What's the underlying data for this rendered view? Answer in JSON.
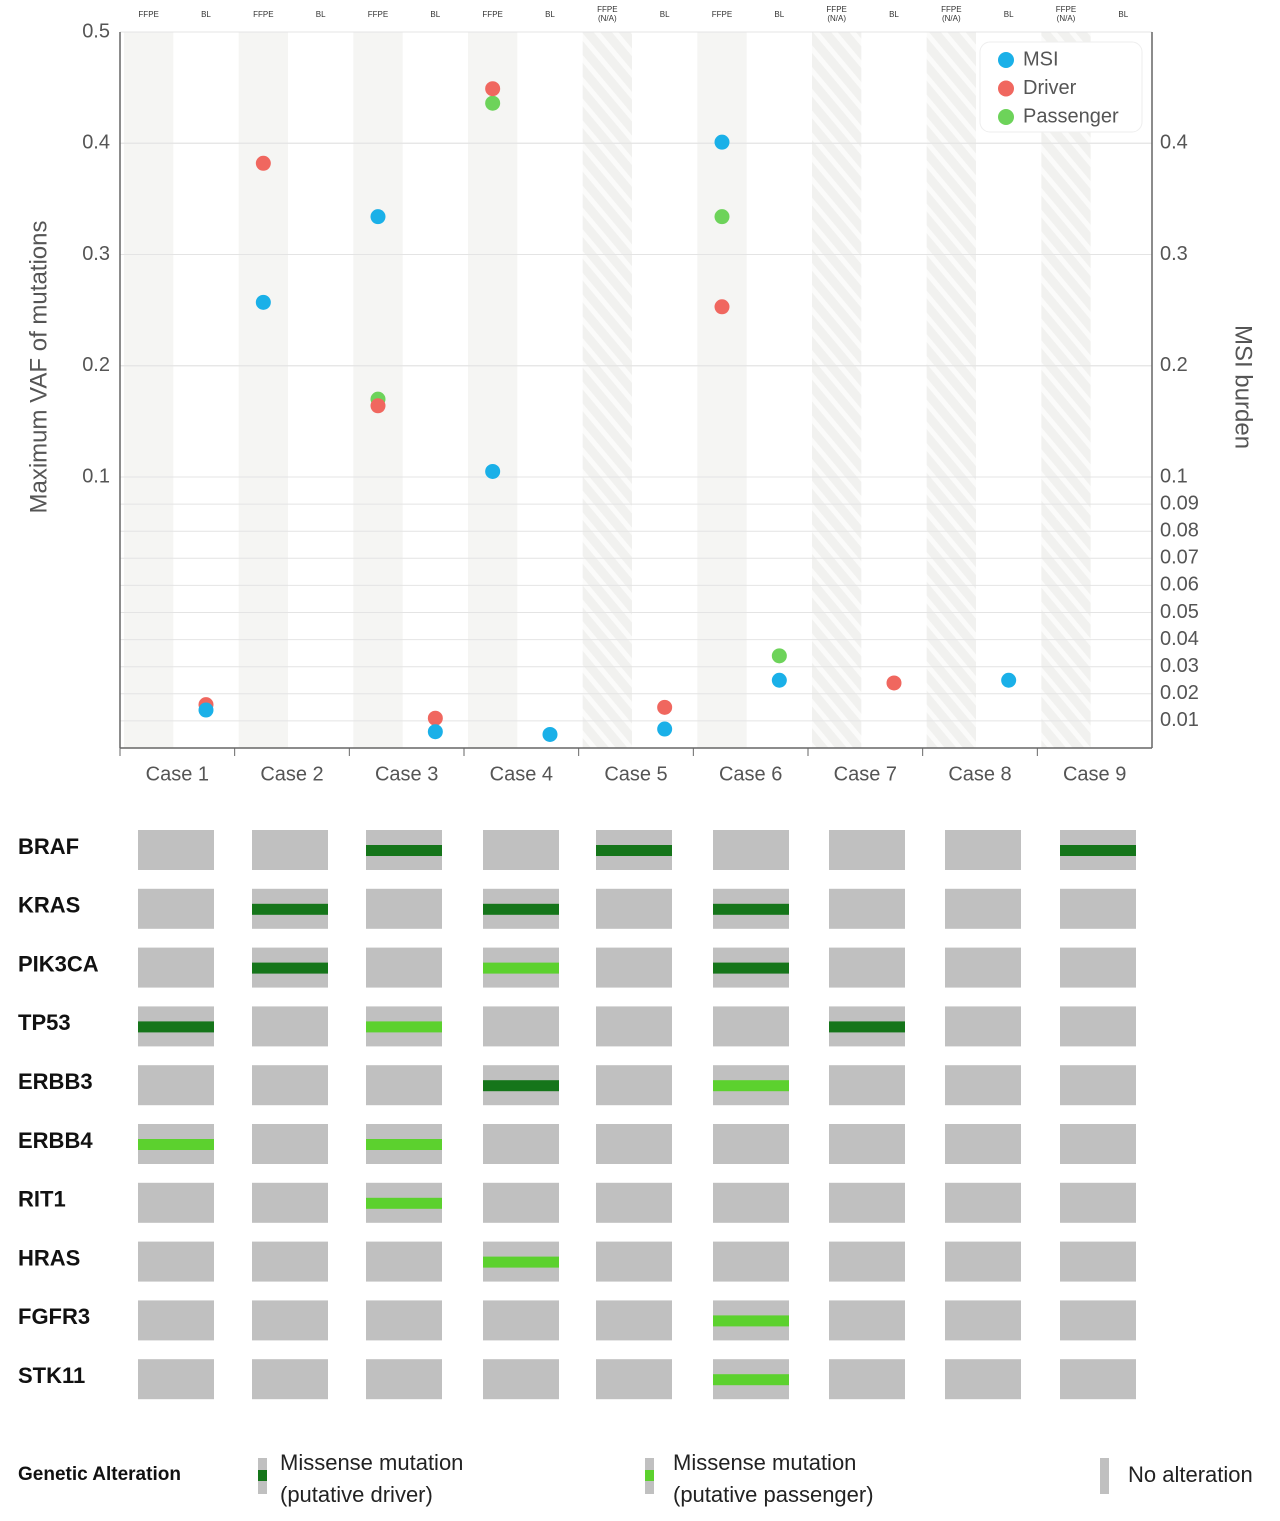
{
  "chart_data": {
    "type": "scatter",
    "columns": [
      "FFPE",
      "BL",
      "FFPE",
      "BL",
      "FFPE",
      "BL",
      "FFPE",
      "BL",
      "FFPE (N/A)",
      "BL",
      "FFPE",
      "BL",
      "FFPE (N/A)",
      "BL",
      "FFPE (N/A)",
      "BL",
      "FFPE (N/A)",
      "BL"
    ],
    "cases": [
      "Case 1",
      "Case 2",
      "Case 3",
      "Case 4",
      "Case 5",
      "Case 6",
      "Case 7",
      "Case 8",
      "Case 9"
    ],
    "y_label": "Maximum VAF of mutations",
    "y2_label": "MSI burden",
    "ylim": [
      0,
      0.5
    ],
    "yticks": [
      0.1,
      0.2,
      0.3,
      0.4,
      0.5
    ],
    "y2lim": [
      0,
      0.5
    ],
    "y2ticks": [
      0.01,
      0.02,
      0.03,
      0.04,
      0.05,
      0.06,
      0.07,
      0.08,
      0.09,
      0.1,
      0.2,
      0.3,
      0.4
    ],
    "scale_break": 0.1,
    "hatched_columns": [
      8,
      12,
      14,
      16
    ],
    "grid": true,
    "legend": "upper right",
    "series": [
      {
        "name": "MSI",
        "color": "#1ab0e8",
        "axis": "y2",
        "values": [
          null,
          0.014,
          0.257,
          null,
          0.334,
          0.006,
          0.105,
          0.005,
          null,
          0.007,
          0.401,
          0.025,
          null,
          null,
          null,
          0.025,
          null,
          null
        ]
      },
      {
        "name": "Driver",
        "color": "#f0675f",
        "values": [
          null,
          0.016,
          0.382,
          null,
          0.164,
          0.011,
          0.449,
          null,
          null,
          0.015,
          0.253,
          null,
          null,
          0.024,
          null,
          null,
          null,
          null
        ]
      },
      {
        "name": "Passenger",
        "color": "#6dd35a",
        "values": [
          null,
          null,
          null,
          null,
          0.17,
          null,
          0.436,
          null,
          null,
          null,
          0.334,
          0.034,
          null,
          null,
          null,
          null,
          null,
          null
        ]
      }
    ]
  },
  "oncoprint": {
    "genes": [
      "BRAF",
      "KRAS",
      "PIK3CA",
      "TP53",
      "ERBB3",
      "ERBB4",
      "RIT1",
      "HRAS",
      "FGFR3",
      "STK11"
    ],
    "alterations": [
      [
        null,
        null,
        0,
        null,
        0,
        null,
        null,
        null,
        0
      ],
      [
        null,
        0,
        null,
        0,
        null,
        0,
        null,
        null,
        null
      ],
      [
        null,
        0,
        null,
        1,
        null,
        0,
        null,
        null,
        null
      ],
      [
        0,
        null,
        1,
        null,
        null,
        null,
        0,
        null,
        null
      ],
      [
        null,
        null,
        null,
        0,
        null,
        1,
        null,
        null,
        null
      ],
      [
        1,
        null,
        1,
        null,
        null,
        null,
        null,
        null,
        null
      ],
      [
        null,
        null,
        1,
        null,
        null,
        null,
        null,
        null,
        null
      ],
      [
        null,
        null,
        null,
        1,
        null,
        null,
        null,
        null,
        null
      ],
      [
        null,
        null,
        null,
        null,
        null,
        1,
        null,
        null,
        null
      ],
      [
        null,
        null,
        null,
        null,
        null,
        1,
        null,
        null,
        null
      ]
    ],
    "cell_color": "#c0c0c0",
    "legend_title": "Genetic Alteration",
    "legend": [
      {
        "label": "Missense mutation (putative driver)",
        "color": "#15751a"
      },
      {
        "label": "Missense mutation (putative passenger)",
        "color": "#5cd12e"
      },
      {
        "label": "No alteration"
      }
    ]
  }
}
